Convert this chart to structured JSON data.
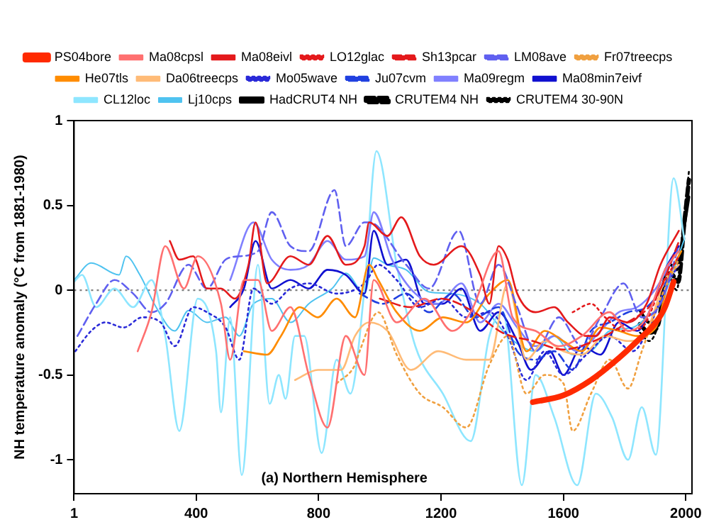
{
  "chart_data": {
    "type": "line",
    "ylabel": "NH temperature anomaly (°C from 1881-1980)",
    "xlim": [
      1,
      2020
    ],
    "xticks": [
      1,
      400,
      800,
      1200,
      1600,
      2000
    ],
    "ylim": [
      -1.2,
      1.0
    ],
    "yticks": [
      -1.0,
      -0.5,
      0.0,
      0.5,
      1.0
    ],
    "grid": false,
    "legend": "top",
    "marker": "none",
    "annotations": [
      "(a) Northern Hemisphere"
    ],
    "ref_lines": [
      {
        "axis": "y",
        "value": 0,
        "color": "#808080",
        "line_style": "dotted"
      }
    ],
    "series": [
      {
        "name": "PS04bore",
        "color": "#ff2a00",
        "line_style": "solid",
        "x": [
          1500,
          1600,
          1690,
          1781,
          1841,
          1902,
          1932,
          1960
        ],
        "values": [
          -0.66,
          -0.62,
          -0.53,
          -0.4,
          -0.3,
          -0.19,
          -0.1,
          0.05
        ]
      },
      {
        "name": "Ma08cpsl",
        "color": "#ff7070",
        "line_style": "solid",
        "x": [
          209,
          254,
          299,
          360,
          405,
          481,
          511,
          556,
          602,
          647,
          708,
          768,
          829,
          889,
          950,
          980,
          1055,
          1146,
          1237,
          1297,
          1388,
          1434,
          1509,
          1585,
          1660,
          1751,
          1811,
          1872,
          1932,
          1977
        ],
        "values": [
          -0.36,
          -0.13,
          0.26,
          0.01,
          0.2,
          -0.08,
          -0.41,
          0.06,
          0.06,
          -0.24,
          -0.1,
          -0.5,
          -0.81,
          -0.27,
          -0.5,
          0.06,
          -0.19,
          -0.05,
          -0.24,
          -0.13,
          0.23,
          -0.16,
          -0.24,
          -0.33,
          -0.27,
          -0.13,
          -0.24,
          -0.16,
          0.12,
          0.23
        ]
      },
      {
        "name": "Ma08eivl",
        "color": "#e41a1c",
        "line_style": "solid",
        "x": [
          314,
          345,
          390,
          435,
          481,
          526,
          571,
          594,
          632,
          708,
          768,
          829,
          889,
          950,
          965,
          1025,
          1070,
          1131,
          1176,
          1267,
          1328,
          1358,
          1388,
          1418,
          1449,
          1509,
          1570,
          1615,
          1675,
          1706,
          1751,
          1811,
          1872,
          1917,
          1977
        ],
        "values": [
          0.29,
          0.18,
          0.2,
          0.01,
          0.01,
          -0.05,
          0.15,
          0.4,
          0.04,
          0.2,
          0.15,
          0.32,
          0.15,
          0.26,
          0.4,
          0.32,
          0.43,
          0.2,
          0.15,
          0.26,
          0.09,
          -0.08,
          0.26,
          0.18,
          -0.02,
          -0.13,
          -0.1,
          -0.19,
          -0.27,
          -0.27,
          -0.16,
          -0.19,
          -0.08,
          0.15,
          0.35
        ]
      },
      {
        "name": "LO12glac",
        "color": "#e41a1c",
        "line_style": "dotted",
        "x": [
          1630,
          1690,
          1736,
          1796,
          1856,
          1917,
          1977
        ],
        "values": [
          -0.13,
          -0.08,
          -0.16,
          -0.24,
          -0.22,
          0.01,
          0.2
        ]
      },
      {
        "name": "Sh13pcar",
        "color": "#e41a1c",
        "line_style": "dashed",
        "x": [
          1000,
          1100,
          1200,
          1300,
          1400,
          1500,
          1600,
          1700,
          1800,
          1900,
          1980
        ],
        "values": [
          -0.05,
          -0.1,
          -0.05,
          -0.12,
          -0.25,
          -0.3,
          -0.35,
          -0.3,
          -0.2,
          -0.05,
          0.3
        ]
      },
      {
        "name": "LM08ave",
        "color": "#6060f0",
        "line_style": "dashed",
        "x": [
          12,
          73,
          133,
          194,
          254,
          299,
          375,
          435,
          496,
          541,
          602,
          647,
          708,
          768,
          852,
          889,
          950,
          965,
          1086,
          1161,
          1258,
          1328,
          1388,
          1449,
          1509,
          1585,
          1660,
          1721,
          1796,
          1856,
          1917,
          1977
        ],
        "values": [
          -0.27,
          -0.08,
          0.06,
          -0.02,
          -0.13,
          -0.08,
          0.15,
          0.01,
          0.18,
          0.2,
          0.23,
          0.46,
          0.26,
          0.23,
          0.59,
          0.26,
          0.4,
          0.4,
          0.15,
          0.01,
          0.35,
          -0.08,
          0.15,
          -0.1,
          -0.36,
          -0.16,
          -0.33,
          -0.16,
          0.04,
          -0.16,
          -0.08,
          0.26
        ]
      },
      {
        "name": "Fr07treecps",
        "color": "#f0a040",
        "line_style": "dotted",
        "x": [
          859,
          919,
          934,
          995,
          1055,
          1131,
          1206,
          1282,
          1358,
          1418,
          1479,
          1539,
          1600,
          1630,
          1690,
          1751,
          1811,
          1856,
          1917,
          1977
        ],
        "values": [
          -0.55,
          -0.44,
          -0.36,
          -0.13,
          -0.38,
          -0.61,
          -0.69,
          -0.81,
          -0.44,
          -0.27,
          -0.61,
          -0.5,
          -0.55,
          -0.83,
          -0.61,
          -0.41,
          -0.58,
          -0.36,
          -0.05,
          0.18
        ]
      },
      {
        "name": "He07tls",
        "color": "#ff8c00",
        "line_style": "solid",
        "x": [
          556,
          632,
          677,
          738,
          798,
          859,
          919,
          965,
          995,
          1055,
          1131,
          1206,
          1282,
          1358,
          1418,
          1479,
          1539,
          1600,
          1660,
          1721,
          1781,
          1841,
          1902,
          1947,
          1985
        ],
        "values": [
          -0.36,
          -0.38,
          -0.27,
          -0.1,
          -0.16,
          -0.05,
          -0.16,
          0.15,
          0.06,
          -0.13,
          -0.24,
          -0.16,
          -0.19,
          -0.02,
          0.06,
          -0.36,
          -0.24,
          -0.3,
          -0.36,
          -0.22,
          -0.24,
          -0.27,
          -0.22,
          0.09,
          0.23
        ]
      },
      {
        "name": "Da06treecps",
        "color": "#ffbb77",
        "line_style": "solid",
        "x": [
          723,
          798,
          874,
          919,
          965,
          1025,
          1101,
          1191,
          1282,
          1358,
          1418,
          1479,
          1539,
          1600,
          1660,
          1736,
          1811,
          1872,
          1932,
          1977
        ],
        "values": [
          -0.53,
          -0.47,
          -0.47,
          -0.27,
          -0.19,
          -0.24,
          -0.47,
          -0.36,
          -0.41,
          -0.41,
          0.04,
          -0.41,
          -0.3,
          -0.36,
          -0.38,
          -0.27,
          -0.3,
          -0.24,
          0.06,
          0.15
        ]
      },
      {
        "name": "Mo05wave",
        "color": "#2a2ad8",
        "line_style": "dotted",
        "x": [
          5,
          57,
          103,
          163,
          224,
          284,
          330,
          390,
          435,
          496,
          541,
          587,
          647,
          708,
          768,
          859,
          950,
          995,
          1055,
          1131,
          1206,
          1282,
          1358,
          1418,
          1479,
          1539,
          1600,
          1675,
          1751,
          1826,
          1887,
          1932,
          1977
        ],
        "values": [
          -0.36,
          -0.24,
          -0.19,
          -0.22,
          -0.16,
          -0.19,
          -0.33,
          -0.1,
          -0.13,
          -0.22,
          -0.41,
          0.01,
          -0.08,
          0.01,
          0.04,
          -0.02,
          0.04,
          0.15,
          0.06,
          -0.1,
          -0.05,
          -0.16,
          -0.13,
          -0.27,
          -0.53,
          -0.36,
          -0.5,
          -0.38,
          -0.27,
          -0.36,
          -0.19,
          0.01,
          0.15
        ]
      },
      {
        "name": "Ju07cvm",
        "color": "#2040e0",
        "line_style": "dashed",
        "x": [
          934,
          1010,
          1086,
          1161,
          1237,
          1312,
          1388,
          1449,
          1509,
          1570,
          1630,
          1690,
          1751,
          1811,
          1872,
          1932,
          1977
        ],
        "values": [
          -0.02,
          -0.08,
          -0.02,
          -0.13,
          -0.02,
          -0.16,
          -0.1,
          -0.36,
          -0.41,
          -0.36,
          -0.47,
          -0.24,
          -0.19,
          -0.13,
          -0.1,
          0.04,
          0.2
        ]
      },
      {
        "name": "Ma09regm",
        "color": "#8080ff",
        "line_style": "solid",
        "x": [
          511,
          587,
          647,
          708,
          768,
          829,
          889,
          950,
          980,
          1040,
          1116,
          1191,
          1267,
          1328,
          1388,
          1449,
          1509,
          1570,
          1645,
          1721,
          1781,
          1841,
          1902,
          1962
        ],
        "values": [
          0.06,
          0.4,
          0.18,
          0.12,
          0.15,
          0.29,
          0.18,
          0.2,
          0.46,
          0.18,
          -0.02,
          -0.08,
          0.04,
          -0.19,
          -0.08,
          -0.22,
          -0.33,
          -0.27,
          -0.36,
          -0.24,
          -0.13,
          -0.1,
          0.01,
          0.2
        ]
      },
      {
        "name": "Ma08min7eivf",
        "color": "#1010d0",
        "line_style": "solid",
        "x": [
          511,
          556,
          594,
          647,
          708,
          768,
          829,
          889,
          950,
          980,
          1025,
          1086,
          1146,
          1206,
          1267,
          1328,
          1388,
          1449,
          1494,
          1555,
          1600,
          1660,
          1721,
          1781,
          1841,
          1887,
          1932,
          1977
        ],
        "values": [
          -0.1,
          0.01,
          0.29,
          0.01,
          0.06,
          0.01,
          0.12,
          0.09,
          -0.02,
          0.35,
          0.15,
          0.18,
          -0.08,
          -0.08,
          0.01,
          -0.24,
          -0.13,
          -0.3,
          -0.47,
          -0.36,
          -0.5,
          -0.33,
          -0.38,
          -0.19,
          -0.24,
          -0.1,
          0.12,
          0.26
        ]
      },
      {
        "name": "CL12loc",
        "color": "#8ee6ff",
        "line_style": "solid",
        "x": [
          1,
          27,
          73,
          133,
          194,
          254,
          299,
          345,
          405,
          465,
          481,
          511,
          549,
          602,
          640,
          670,
          692,
          723,
          753,
          810,
          859,
          904,
          950,
          989,
          1055,
          1116,
          1206,
          1297,
          1358,
          1403,
          1464,
          1509,
          1570,
          1645,
          1706,
          1759,
          1811,
          1856,
          1902,
          1960,
          1995
        ],
        "values": [
          0.05,
          0.09,
          -0.1,
          0.01,
          -0.1,
          0.06,
          -0.27,
          -0.83,
          -0.05,
          -0.36,
          -0.72,
          -0.16,
          -1.09,
          0.15,
          -0.67,
          -0.5,
          -0.64,
          -0.27,
          -0.27,
          -0.96,
          -0.41,
          -0.61,
          0.01,
          0.82,
          0.15,
          -0.33,
          -0.61,
          -0.89,
          -0.27,
          -0.13,
          -1.15,
          -0.5,
          -0.75,
          -1.15,
          -0.61,
          -0.75,
          -1.0,
          -0.69,
          -0.97,
          0.66,
          0.3
        ]
      },
      {
        "name": "Lj10cps",
        "color": "#4fc3f0",
        "line_style": "solid",
        "x": [
          1,
          57,
          148,
          171,
          216,
          269,
          330,
          375,
          435,
          496,
          541,
          587,
          647,
          708,
          768,
          844,
          889,
          950,
          980,
          1025,
          1086,
          1161,
          1237,
          1328,
          1418,
          1509,
          1570,
          1630,
          1690,
          1751,
          1826,
          1872,
          1917,
          1995
        ],
        "values": [
          0.06,
          0.16,
          0.09,
          0.2,
          0.09,
          -0.1,
          -0.24,
          -0.12,
          -0.19,
          -0.16,
          -0.27,
          -0.08,
          -0.05,
          -0.19,
          -0.08,
          0.01,
          0.1,
          -0.02,
          0.19,
          0.15,
          0.12,
          -0.01,
          -0.02,
          -0.08,
          -0.27,
          -0.36,
          -0.27,
          -0.38,
          -0.36,
          -0.24,
          -0.22,
          -0.16,
          -0.08,
          0.3
        ]
      },
      {
        "name": "HadCRUT4 NH",
        "color": "#000000",
        "line_style": "solid",
        "x": [
          1850,
          1880,
          1910,
          1930,
          1950,
          1970,
          1990,
          2010
        ],
        "values": [
          -0.12,
          -0.19,
          -0.18,
          0.06,
          0.15,
          0.12,
          0.32,
          0.55
        ]
      },
      {
        "name": "CRUTEM4 NH",
        "color": "#000000",
        "line_style": "dashed",
        "x": [
          1850,
          1880,
          1910,
          1930,
          1950,
          1975,
          1995,
          2010
        ],
        "values": [
          -0.2,
          -0.25,
          -0.2,
          0.05,
          0.1,
          0.05,
          0.4,
          0.65
        ]
      },
      {
        "name": "CRUTEM4 30-90N",
        "color": "#000000",
        "line_style": "dotted",
        "x": [
          1850,
          1880,
          1910,
          1940,
          1970,
          1995,
          2010
        ],
        "values": [
          -0.25,
          -0.3,
          -0.2,
          0.1,
          0.0,
          0.45,
          0.7
        ]
      }
    ]
  }
}
